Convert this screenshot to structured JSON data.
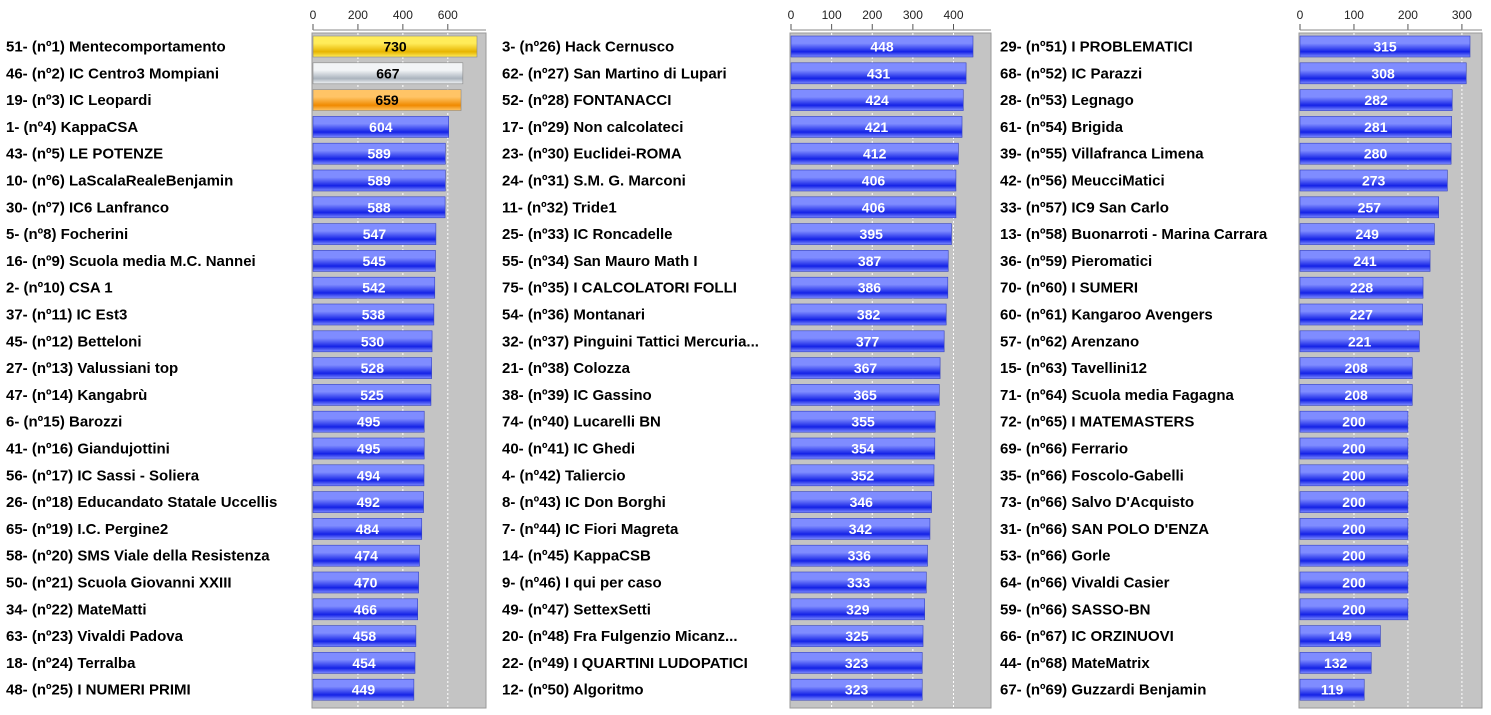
{
  "colors": {
    "plot_background": "#c4c4c4",
    "bar_blue_light": "#7f8cff",
    "bar_blue_dark": "#1422e6",
    "bar_gold_light": "#ffec5a",
    "bar_gold_dark": "#e6b400",
    "bar_silver_light": "#f2f4f6",
    "bar_silver_dark": "#aab3bd",
    "bar_bronze_light": "#ffc466",
    "bar_bronze_dark": "#f08a00",
    "grid": "#ffffff"
  },
  "chart_data": [
    {
      "type": "bar",
      "orientation": "horizontal",
      "xlim": [
        0,
        730
      ],
      "xticks": [
        0,
        200,
        400,
        600
      ],
      "grid": true,
      "categories": [
        "51- (nº1) Mentecomportamento",
        "46- (nº2) IC Centro3 Mompiani",
        "19- (nº3) IC Leopardi",
        "1- (nº4) KappaCSA",
        "43- (nº5) LE POTENZE",
        "10- (nº6) LaScalaRealeBenjamin",
        "30- (nº7) IC6 Lanfranco",
        "5- (nº8) Focherini",
        "16- (nº9) Scuola media M.C. Nannei",
        "2- (nº10) CSA 1",
        "37- (nº11) IC Est3",
        "45- (nº12) Betteloni",
        "27- (nº13) Valussiani top",
        "47- (nº14) Kangabrù",
        "6- (nº15) Barozzi",
        "41- (nº16) Giandujottini",
        "56- (nº17) IC Sassi - Soliera",
        "26- (nº18) Educandato Statale Uccellis",
        "65- (nº19) I.C. Pergine2",
        "58- (nº20) SMS Viale della Resistenza",
        "50- (nº21) Scuola Giovanni XXIII",
        "34- (nº22) MateMatti",
        "63- (nº23) Vivaldi Padova",
        "18- (nº24) Terralba",
        "48- (nº25) I NUMERI PRIMI"
      ],
      "values": [
        730,
        667,
        659,
        604,
        589,
        589,
        588,
        547,
        545,
        542,
        538,
        530,
        528,
        525,
        495,
        495,
        494,
        492,
        484,
        474,
        470,
        466,
        458,
        454,
        449
      ],
      "medals": [
        "gold",
        "silver",
        "bronze"
      ]
    },
    {
      "type": "bar",
      "orientation": "horizontal",
      "xlim": [
        0,
        448
      ],
      "xticks": [
        0,
        100,
        200,
        300,
        400
      ],
      "grid": true,
      "categories": [
        "3- (nº26) Hack Cernusco",
        "62- (nº27) San Martino di Lupari",
        "52- (nº28) FONTANACCI",
        "17- (nº29) Non calcolateci",
        "23- (nº30) Euclidei-ROMA",
        "24- (nº31) S.M. G. Marconi",
        "11- (nº32) Tride1",
        "25- (nº33) IC Roncadelle",
        "55- (nº34) San Mauro Math I",
        "75- (nº35) I CALCOLATORI FOLLI",
        "54- (nº36) Montanari",
        "32- (nº37) Pinguini Tattici Mercuria...",
        "21- (nº38) Colozza",
        "38- (nº39) IC Gassino",
        "74- (nº40) Lucarelli BN",
        "40- (nº41) IC Ghedi",
        "4- (nº42) Taliercio",
        "8- (nº43) IC Don Borghi",
        "7- (nº44) IC Fiori Magreta",
        "14- (nº45) KappaCSB",
        "9- (nº46) I qui per caso",
        "49- (nº47) SettexSetti",
        "20- (nº48) Fra Fulgenzio Micanz...",
        "22- (nº49) I QUARTINI LUDOPATICI",
        "12- (nº50) Algoritmo"
      ],
      "values": [
        448,
        431,
        424,
        421,
        412,
        406,
        406,
        395,
        387,
        386,
        382,
        377,
        367,
        365,
        355,
        354,
        352,
        346,
        342,
        336,
        333,
        329,
        325,
        323,
        323
      ]
    },
    {
      "type": "bar",
      "orientation": "horizontal",
      "xlim": [
        0,
        315
      ],
      "xticks": [
        0,
        100,
        200,
        300
      ],
      "grid": true,
      "categories": [
        "29- (nº51) I PROBLEMATICI",
        "68- (nº52) IC Parazzi",
        "28- (nº53) Legnago",
        "61- (nº54) Brigida",
        "39- (nº55) Villafranca Limena",
        "42- (nº56) MeucciMatici",
        "33- (nº57) IC9 San Carlo",
        "13- (nº58) Buonarroti - Marina Carrara",
        "36- (nº59) Pieromatici",
        "70- (nº60) I SUMERI",
        "60- (nº61) Kangaroo Avengers",
        "57- (nº62) Arenzano",
        "15- (nº63) Tavellini12",
        "71- (nº64) Scuola media Fagagna",
        "72- (nº65) I MATEMASTERS",
        "69- (nº66) Ferrario",
        "35- (nº66) Foscolo-Gabelli",
        "73- (nº66) Salvo D'Acquisto",
        "31- (nº66) SAN POLO D'ENZA",
        "53- (nº66) Gorle",
        "64- (nº66) Vivaldi Casier",
        "59- (nº66) SASSO-BN",
        "66- (nº67) IC ORZINUOVI",
        "44- (nº68) MateMatrix",
        "67- (nº69) Guzzardi Benjamin"
      ],
      "values": [
        315,
        308,
        282,
        281,
        280,
        273,
        257,
        249,
        241,
        228,
        227,
        221,
        208,
        208,
        200,
        200,
        200,
        200,
        200,
        200,
        200,
        200,
        149,
        132,
        119
      ]
    }
  ]
}
